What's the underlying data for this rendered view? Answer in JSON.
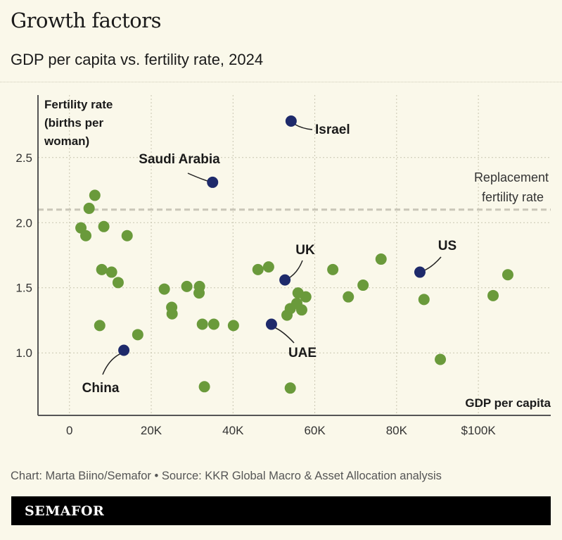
{
  "header": {
    "title": "Growth factors",
    "subtitle": "GDP per capita vs. fertility rate, 2024"
  },
  "footer": {
    "credit": "Chart: Marta Biino/Semafor • Source: KKR Global Macro & Asset Allocation analysis",
    "brand": "SEMAFOR"
  },
  "chart_data": {
    "type": "scatter",
    "title": "GDP per capita vs. fertility rate, 2024",
    "xlabel": "GDP per capita",
    "ylabel": "Fertility rate (births per woman)",
    "ylabel_lines": [
      "Fertility rate",
      "(births per",
      "woman)"
    ],
    "xlim": [
      -7.7,
      117.7
    ],
    "ylim": [
      0.52,
      2.98
    ],
    "x_unit": "thousand USD",
    "x_ticks": [
      0,
      20,
      40,
      60,
      80,
      100
    ],
    "x_tick_labels": [
      "0",
      "20K",
      "40K",
      "60K",
      "80K",
      "$100K"
    ],
    "y_ticks": [
      1.0,
      1.5,
      2.0,
      2.5
    ],
    "y_tick_labels": [
      "1.0",
      "1.5",
      "2.0",
      "2.5"
    ],
    "grid": true,
    "reference_line": {
      "y": 2.1,
      "label_lines": [
        "Replacement",
        "fertility rate"
      ]
    },
    "colors": {
      "other": "#6a9a3b",
      "highlight": "#1e2a6b",
      "reference": "#c9c6b8",
      "background": "#faf8ea"
    },
    "points": [
      {
        "x": 6.2,
        "y": 2.21
      },
      {
        "x": 4.8,
        "y": 2.11
      },
      {
        "x": 2.8,
        "y": 1.96
      },
      {
        "x": 4.0,
        "y": 1.9
      },
      {
        "x": 8.4,
        "y": 1.97
      },
      {
        "x": 14.1,
        "y": 1.9
      },
      {
        "x": 7.9,
        "y": 1.64
      },
      {
        "x": 10.3,
        "y": 1.62
      },
      {
        "x": 11.9,
        "y": 1.54
      },
      {
        "x": 7.4,
        "y": 1.21
      },
      {
        "x": 16.7,
        "y": 1.14
      },
      {
        "x": 23.2,
        "y": 1.49
      },
      {
        "x": 25.0,
        "y": 1.35
      },
      {
        "x": 25.1,
        "y": 1.3
      },
      {
        "x": 28.7,
        "y": 1.51
      },
      {
        "x": 31.8,
        "y": 1.51
      },
      {
        "x": 31.7,
        "y": 1.46
      },
      {
        "x": 32.5,
        "y": 1.22
      },
      {
        "x": 35.3,
        "y": 1.22
      },
      {
        "x": 40.1,
        "y": 1.21
      },
      {
        "x": 33.0,
        "y": 0.74
      },
      {
        "x": 46.1,
        "y": 1.64
      },
      {
        "x": 48.7,
        "y": 1.66
      },
      {
        "x": 64.4,
        "y": 1.64
      },
      {
        "x": 76.2,
        "y": 1.72
      },
      {
        "x": 71.8,
        "y": 1.52
      },
      {
        "x": 68.2,
        "y": 1.43
      },
      {
        "x": 86.7,
        "y": 1.41
      },
      {
        "x": 90.7,
        "y": 0.95
      },
      {
        "x": 103.6,
        "y": 1.44
      },
      {
        "x": 107.2,
        "y": 1.6
      },
      {
        "x": 55.9,
        "y": 1.46
      },
      {
        "x": 57.8,
        "y": 1.43
      },
      {
        "x": 54.0,
        "y": 1.34
      },
      {
        "x": 56.8,
        "y": 1.33
      },
      {
        "x": 53.2,
        "y": 1.29
      },
      {
        "x": 55.6,
        "y": 1.38
      },
      {
        "x": 54.0,
        "y": 0.73
      }
    ],
    "highlighted": [
      {
        "name": "Israel",
        "x": 54.2,
        "y": 2.78
      },
      {
        "name": "Saudi Arabia",
        "x": 35.0,
        "y": 2.31
      },
      {
        "name": "UK",
        "x": 52.7,
        "y": 1.56
      },
      {
        "name": "UAE",
        "x": 49.4,
        "y": 1.22
      },
      {
        "name": "US",
        "x": 85.7,
        "y": 1.62
      },
      {
        "name": "China",
        "x": 13.3,
        "y": 1.02
      }
    ]
  }
}
